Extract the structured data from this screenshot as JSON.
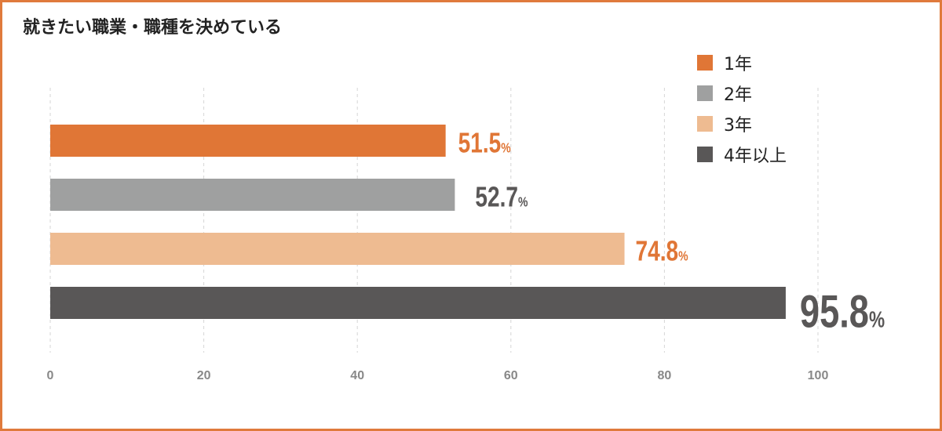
{
  "chart_data": {
    "type": "bar",
    "orientation": "horizontal",
    "title": "就きたい職業・職種を決めている",
    "categories": [
      "1年",
      "2年",
      "3年",
      "4年以上"
    ],
    "values": [
      51.5,
      52.7,
      74.8,
      95.8
    ],
    "value_labels": [
      "51.5",
      "52.7",
      "74.8",
      "95.8"
    ],
    "value_unit": "%",
    "xlim": [
      0,
      100
    ],
    "xticks": [
      "0",
      "20",
      "40",
      "60",
      "80",
      "100"
    ],
    "grid": "vertical dashed",
    "legend_position": "top-right",
    "colors": [
      "#e07636",
      "#9fa0a0",
      "#eebb91",
      "#595757"
    ],
    "label_colors": [
      "#e07636",
      "#595757",
      "#e07636",
      "#595757"
    ]
  }
}
